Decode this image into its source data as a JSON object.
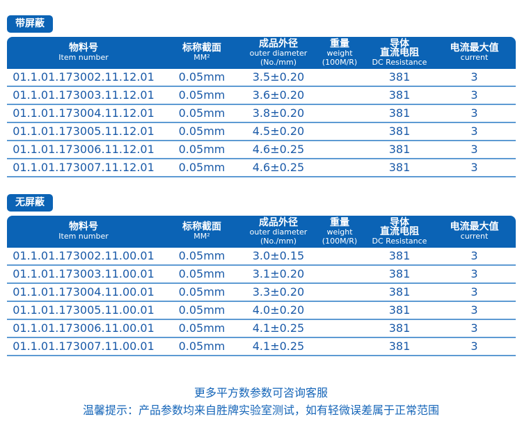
{
  "headers": [
    {
      "zh": "物料号",
      "en": "Item number"
    },
    {
      "zh": "标称截面",
      "en": "MM²"
    },
    {
      "zh": "成品外径",
      "en": "outer diameter",
      "en2": "(No./mm)"
    },
    {
      "zh": "重量",
      "en": "weight",
      "en2": "(100M/R)"
    },
    {
      "zh": "导体",
      "zh2": "直流电阻",
      "en": "DC Resistance"
    },
    {
      "zh": "电流最大值",
      "en": "current"
    }
  ],
  "tables": [
    {
      "tag": "带屏蔽",
      "rows": [
        [
          "01.1.01.173002.11.12.01",
          "0.05mm",
          "3.5±0.20",
          "",
          "381",
          "3"
        ],
        [
          "01.1.01.173003.11.12.01",
          "0.05mm",
          "3.6±0.20",
          "",
          "381",
          "3"
        ],
        [
          "01.1.01.173004.11.12.01",
          "0.05mm",
          "3.8±0.20",
          "",
          "381",
          "3"
        ],
        [
          "01.1.01.173005.11.12.01",
          "0.05mm",
          "4.5±0.20",
          "",
          "381",
          "3"
        ],
        [
          "01.1.01.173006.11.12.01",
          "0.05mm",
          "4.6±0.25",
          "",
          "381",
          "3"
        ],
        [
          "01.1.01.173007.11.12.01",
          "0.05mm",
          "4.6±0.25",
          "",
          "381",
          "3"
        ]
      ]
    },
    {
      "tag": "无屏蔽",
      "rows": [
        [
          "01.1.01.173002.11.00.01",
          "0.05mm",
          "3.0±0.15",
          "",
          "381",
          "3"
        ],
        [
          "01.1.01.173003.11.00.01",
          "0.05mm",
          "3.1±0.20",
          "",
          "381",
          "3"
        ],
        [
          "01.1.01.173004.11.00.01",
          "0.05mm",
          "3.3±0.20",
          "",
          "381",
          "3"
        ],
        [
          "01.1.01.173005.11.00.01",
          "0.05mm",
          "4.0±0.20",
          "",
          "381",
          "3"
        ],
        [
          "01.1.01.173006.11.00.01",
          "0.05mm",
          "4.1±0.25",
          "",
          "381",
          "3"
        ],
        [
          "01.1.01.173007.11.00.01",
          "0.05mm",
          "4.1±0.25",
          "",
          "381",
          "3"
        ]
      ]
    }
  ],
  "footer": {
    "line1": "更多平方数参数可咨询客服",
    "line2": "温馨提示：产品参数均来自胜牌实验室测试，如有轻微误差属于正常范围"
  }
}
